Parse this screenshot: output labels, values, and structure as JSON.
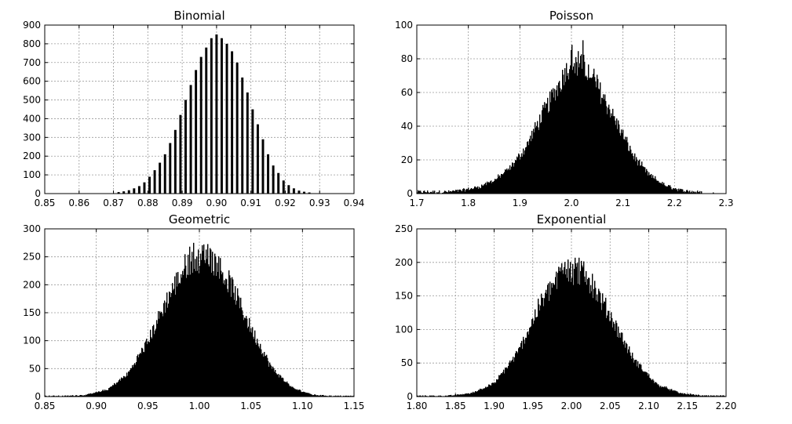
{
  "chart_data": [
    {
      "type": "bar",
      "title": "Binomial",
      "xlim": [
        0.85,
        0.94
      ],
      "ylim": [
        0,
        900
      ],
      "xticks": [
        "0.85",
        "0.86",
        "0.87",
        "0.88",
        "0.89",
        "0.90",
        "0.91",
        "0.92",
        "0.93",
        "0.94"
      ],
      "yticks": [
        "0",
        "100",
        "200",
        "300",
        "400",
        "500",
        "600",
        "700",
        "800",
        "900"
      ],
      "grid": true,
      "bin_step": 0.0015,
      "x": [
        0.8715,
        0.873,
        0.8745,
        0.876,
        0.8775,
        0.879,
        0.8805,
        0.882,
        0.8835,
        0.885,
        0.8865,
        0.888,
        0.8895,
        0.891,
        0.8925,
        0.894,
        0.8955,
        0.897,
        0.8985,
        0.9,
        0.9015,
        0.903,
        0.9045,
        0.906,
        0.9075,
        0.909,
        0.9105,
        0.912,
        0.9135,
        0.915,
        0.9165,
        0.918,
        0.9195,
        0.921,
        0.9225,
        0.924,
        0.9255,
        0.927
      ],
      "values": [
        8,
        12,
        18,
        28,
        40,
        60,
        90,
        125,
        165,
        210,
        270,
        340,
        420,
        500,
        580,
        660,
        730,
        780,
        830,
        850,
        830,
        800,
        760,
        700,
        620,
        540,
        450,
        370,
        290,
        210,
        150,
        110,
        70,
        45,
        28,
        16,
        10,
        6
      ]
    },
    {
      "type": "histogram",
      "title": "Poisson",
      "xlim": [
        1.7,
        2.3
      ],
      "ylim": [
        0,
        100
      ],
      "xticks": [
        "1.7",
        "1.8",
        "1.9",
        "2.0",
        "2.1",
        "2.2",
        "2.3"
      ],
      "yticks": [
        "0",
        "20",
        "40",
        "60",
        "80",
        "100"
      ],
      "grid": true,
      "x": [
        1.73,
        1.76,
        1.79,
        1.82,
        1.85,
        1.88,
        1.91,
        1.94,
        1.97,
        2.0,
        2.03,
        2.06,
        2.09,
        2.12,
        2.15,
        2.18,
        2.21,
        2.24,
        2.27
      ],
      "values": [
        1,
        1,
        2,
        4,
        8,
        15,
        27,
        45,
        62,
        80,
        74,
        58,
        40,
        22,
        11,
        5,
        2,
        1,
        0
      ],
      "peak": 91
    },
    {
      "type": "histogram",
      "title": "Geometric",
      "xlim": [
        0.85,
        1.15
      ],
      "ylim": [
        0,
        300
      ],
      "xticks": [
        "0.85",
        "0.90",
        "0.95",
        "1.00",
        "1.05",
        "1.10",
        "1.15"
      ],
      "yticks": [
        "0",
        "50",
        "100",
        "150",
        "200",
        "250",
        "300"
      ],
      "grid": true,
      "x": [
        0.87,
        0.89,
        0.91,
        0.93,
        0.95,
        0.97,
        0.99,
        1.01,
        1.03,
        1.05,
        1.07,
        1.09,
        1.11,
        1.13
      ],
      "values": [
        1,
        3,
        12,
        40,
        100,
        180,
        245,
        250,
        200,
        120,
        50,
        15,
        3,
        1
      ],
      "peak": 275
    },
    {
      "type": "histogram",
      "title": "Exponential",
      "xlim": [
        1.8,
        2.2
      ],
      "ylim": [
        0,
        250
      ],
      "xticks": [
        "1.80",
        "1.85",
        "1.90",
        "1.95",
        "2.00",
        "2.05",
        "2.10",
        "2.15",
        "2.20"
      ],
      "yticks": [
        "0",
        "50",
        "100",
        "150",
        "200",
        "250"
      ],
      "grid": true,
      "x": [
        1.84,
        1.87,
        1.9,
        1.93,
        1.96,
        1.99,
        2.02,
        2.05,
        2.08,
        2.11,
        2.14,
        2.17
      ],
      "values": [
        1,
        5,
        20,
        65,
        140,
        190,
        180,
        120,
        55,
        18,
        5,
        1
      ],
      "peak": 207
    }
  ]
}
